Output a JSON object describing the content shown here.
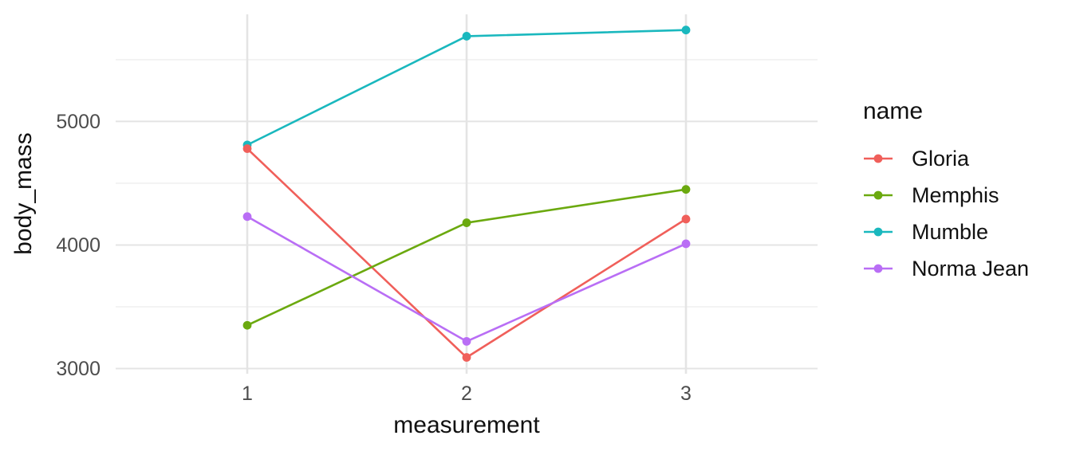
{
  "figure": {
    "background": "#FFFFFF"
  },
  "legend": {
    "title": "name"
  },
  "axes": {
    "x_title": "measurement",
    "y_title": "body_mass",
    "x_tick_labels": [
      "1",
      "2",
      "3"
    ],
    "y_tick_labels": [
      "3000",
      "4000",
      "5000"
    ],
    "tick_color": "#4D4D4D",
    "title_color": "#111111"
  },
  "grid": {
    "major_color": "#E4E4E4",
    "minor_color": "#EFEFEF"
  },
  "chart_data": {
    "type": "line",
    "title": "",
    "xlabel": "measurement",
    "ylabel": "body_mass",
    "x": [
      1,
      2,
      3
    ],
    "series": [
      {
        "name": "Gloria",
        "color": "#F05F5A",
        "values": [
          4780,
          3090,
          4210
        ]
      },
      {
        "name": "Memphis",
        "color": "#6BA90F",
        "values": [
          3350,
          4180,
          4450
        ]
      },
      {
        "name": "Mumble",
        "color": "#1AB8BE",
        "values": [
          4810,
          5690,
          5740
        ]
      },
      {
        "name": "Norma Jean",
        "color": "#B96EF5",
        "values": [
          4230,
          3220,
          4010
        ]
      }
    ],
    "xlim": [
      0.4,
      3.6
    ],
    "ylim": [
      2958,
      5867
    ],
    "xticks": [
      1,
      2,
      3
    ],
    "yticks_major": [
      3000,
      4000,
      5000
    ],
    "yticks_minor": [
      3500,
      4500,
      5500
    ],
    "grid": true,
    "legend_position": "right",
    "legend_title": "name"
  }
}
